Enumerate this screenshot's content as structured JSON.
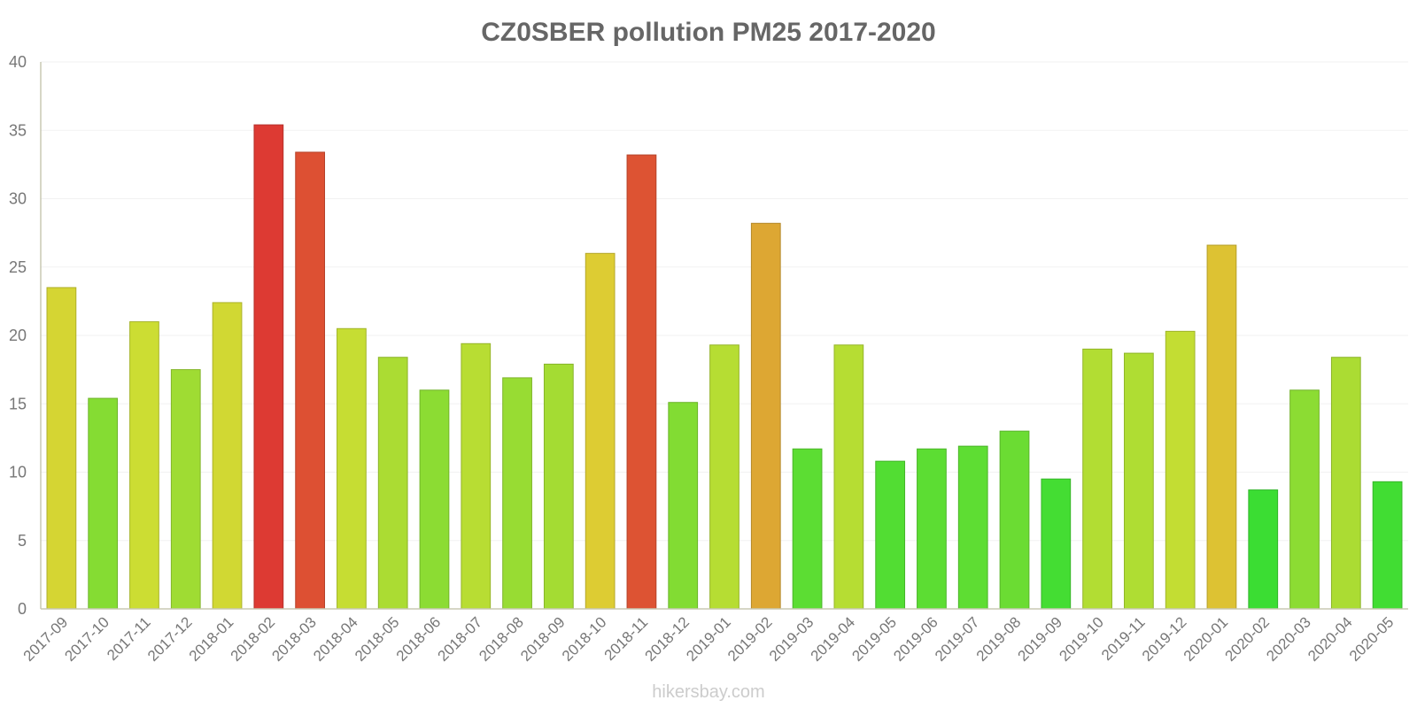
{
  "chart_data": {
    "type": "bar",
    "title": "CZ0SBER pollution PM25 2017-2020",
    "xlabel": "",
    "ylabel": "",
    "ylim": [
      0,
      40
    ],
    "yticks": [
      "0",
      "5",
      "10",
      "15",
      "20",
      "25",
      "30",
      "35",
      "40"
    ],
    "categories": [
      "2017-09",
      "2017-10",
      "2017-11",
      "2017-12",
      "2018-01",
      "2018-02",
      "2018-03",
      "2018-04",
      "2018-05",
      "2018-06",
      "2018-07",
      "2018-08",
      "2018-09",
      "2018-10",
      "2018-11",
      "2018-12",
      "2019-01",
      "2019-02",
      "2019-03",
      "2019-04",
      "2019-05",
      "2019-06",
      "2019-07",
      "2019-08",
      "2019-09",
      "2019-10",
      "2019-11",
      "2019-12",
      "2020-01",
      "2020-02",
      "2020-03",
      "2020-04",
      "2020-05"
    ],
    "values": [
      23.5,
      15.4,
      21.0,
      17.5,
      22.4,
      35.4,
      33.4,
      20.5,
      18.4,
      16.0,
      19.4,
      16.9,
      17.9,
      26.0,
      33.2,
      15.1,
      19.3,
      28.2,
      11.7,
      19.3,
      10.8,
      11.7,
      11.9,
      13.0,
      9.5,
      19.0,
      18.7,
      20.3,
      26.6,
      8.7,
      16.0,
      18.4,
      9.3
    ],
    "grid": true,
    "legend": "none"
  },
  "watermark": "hikersbay.com"
}
